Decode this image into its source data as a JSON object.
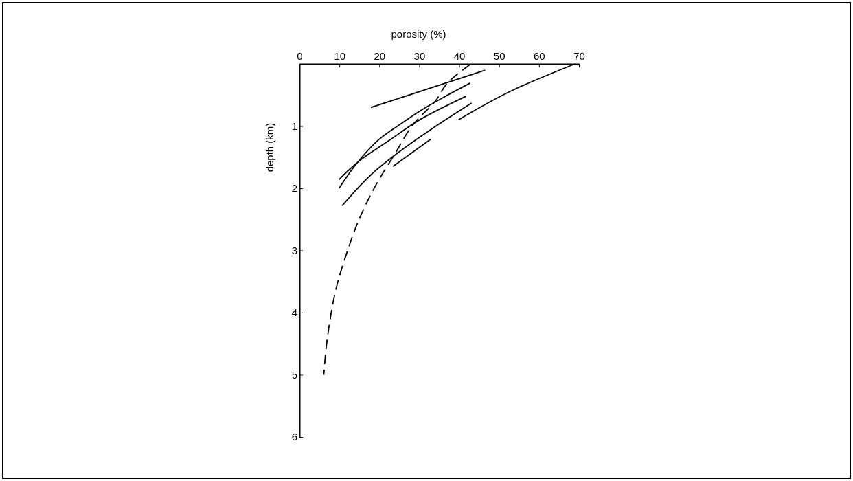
{
  "chart_data": {
    "type": "line",
    "xlabel": "porosity (%)",
    "ylabel": "depth (km)",
    "xlim": [
      0,
      70
    ],
    "xticks": [
      0,
      10,
      20,
      30,
      40,
      50,
      60,
      70
    ],
    "ylim": [
      6,
      0
    ],
    "yticks": [
      1,
      2,
      3,
      4,
      5,
      6
    ],
    "grid": false,
    "marker": "none",
    "line_style": "solid",
    "series": [
      {
        "color": "#000000",
        "x": [
          17.9,
          46.5
        ],
        "values": [
          0.7,
          0.1
        ]
      },
      {
        "color": "#000000",
        "x": [
          69,
          53.5,
          39.8
        ],
        "values": [
          0,
          0.42,
          0.9
        ]
      },
      {
        "color": "#000000",
        "x": [
          42.7,
          36.3,
          30.6,
          24.8,
          20.2,
          15,
          9.9
        ],
        "values": [
          0.31,
          0.53,
          0.74,
          0.99,
          1.2,
          1.55,
          2
        ]
      },
      {
        "color": "#000000",
        "x": [
          41.7,
          30.6,
          22.5,
          15,
          9.9
        ],
        "values": [
          0.52,
          0.88,
          1.23,
          1.56,
          1.86
        ]
      },
      {
        "color": "#000000",
        "x": [
          43.1,
          32.8,
          25.9,
          19,
          10.7
        ],
        "values": [
          0.63,
          1.06,
          1.37,
          1.72,
          2.28
        ]
      },
      {
        "color": "#000000",
        "x": [
          32.9,
          23.4
        ],
        "values": [
          1.21,
          1.65
        ]
      },
      {
        "color": "#000000",
        "line_style": "dashed",
        "x": [
          42.7,
          37.2,
          34,
          28.8,
          23.6,
          20.2,
          15,
          11.6,
          9.3,
          7.6,
          6.7,
          6.1
        ],
        "values": [
          0.01,
          0.3,
          0.6,
          0.95,
          1.48,
          1.83,
          2.49,
          3.09,
          3.58,
          4.14,
          4.56,
          5
        ]
      }
    ]
  }
}
